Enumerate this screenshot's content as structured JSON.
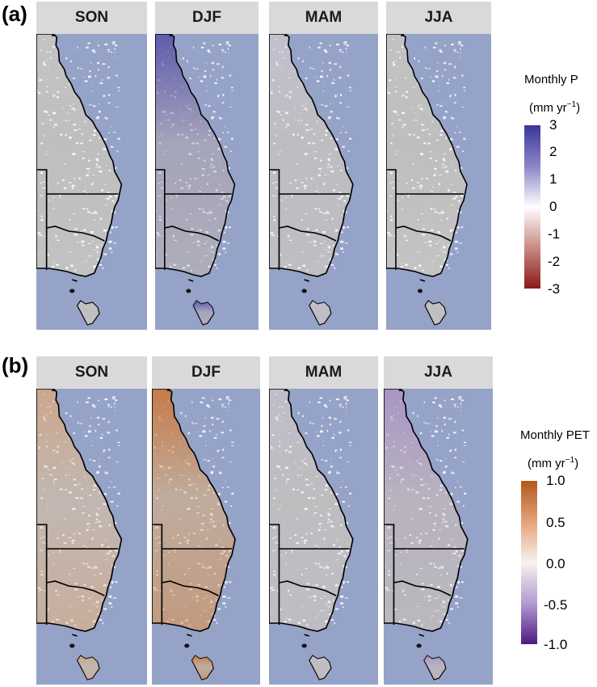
{
  "figure": {
    "panels": [
      {
        "label": "(a)",
        "seasons": [
          "SON",
          "DJF",
          "MAM",
          "JJA"
        ],
        "legend": {
          "title": "Monthly P",
          "unit_base": "(mm yr",
          "unit_sup": "−1",
          "unit_close": ")",
          "ticks": [
            "3",
            "2",
            "1",
            "0",
            "-1",
            "-2",
            "-3"
          ],
          "colors": [
            "#3b3599",
            "#8a86c8",
            "#ffffff",
            "#c98a84",
            "#8b1a16"
          ]
        },
        "tints": [
          {
            "color": "#ffffff",
            "north": 0.1,
            "south": 0.08
          },
          {
            "color": "#3f3aa6",
            "north": 0.75,
            "south": 0.12
          },
          {
            "color": "#c9c5ee",
            "north": 0.35,
            "south": 0.12
          },
          {
            "color": "#ffffff",
            "north": 0.08,
            "south": 0.1
          }
        ]
      },
      {
        "label": "(b)",
        "seasons": [
          "SON",
          "DJF",
          "MAM",
          "JJA"
        ],
        "legend": {
          "title": "Monthly PET",
          "unit_base": "(mm yr",
          "unit_sup": "−1",
          "unit_close": ")",
          "ticks": [
            "1.0",
            "0.5",
            "0.0",
            "-0.5",
            "-1.0"
          ],
          "colors": [
            "#b5581a",
            "#e3a37a",
            "#f7f2ef",
            "#b39ad0",
            "#4b1b82"
          ]
        },
        "tints": [
          {
            "color": "#e08b52",
            "north": 0.45,
            "south": 0.3
          },
          {
            "color": "#c8641f",
            "north": 0.75,
            "south": 0.4
          },
          {
            "color": "#cbbde6",
            "north": 0.3,
            "south": 0.15
          },
          {
            "color": "#9b79cc",
            "north": 0.6,
            "south": 0.08
          }
        ]
      }
    ],
    "colors": {
      "ocean": "#96a3c8",
      "land_gray": "#bdbdbd",
      "strip_bg": "#d9d9d9",
      "border": "#000000"
    }
  }
}
